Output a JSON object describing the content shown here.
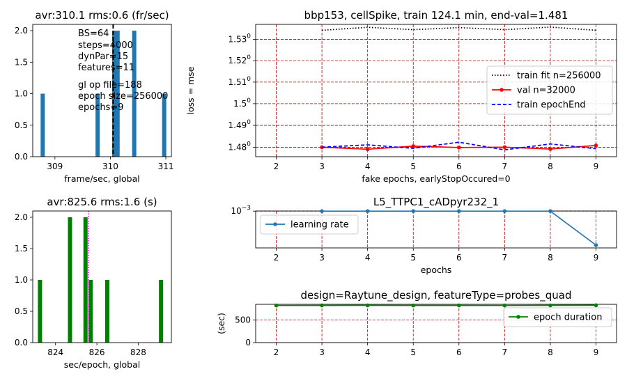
{
  "chart_data": [
    {
      "type": "bar",
      "title": "avr:310.1 rms:0.6 (fr/sec)",
      "xlabel": "frame/sec,  global",
      "ylabel": "",
      "xlim": [
        308.6,
        311.1
      ],
      "ylim": [
        0,
        2.1
      ],
      "xticks": [
        309,
        310,
        311
      ],
      "xtick_labels": [
        "309",
        "310",
        "311"
      ],
      "yticks": [
        0.0,
        0.5,
        1.0,
        1.5,
        2.0
      ],
      "ytick_labels": [
        "0.0",
        "0.5",
        "1.0",
        "1.5",
        "2.0"
      ],
      "bars": [
        {
          "x": 308.78,
          "value": 1
        },
        {
          "x": 309.77,
          "value": 1
        },
        {
          "x": 310.07,
          "value": 2
        },
        {
          "x": 310.13,
          "value": 2
        },
        {
          "x": 310.43,
          "value": 2
        },
        {
          "x": 310.97,
          "value": 1
        }
      ],
      "bar_color": "#1f77b4",
      "mean_line": {
        "x": 310.05,
        "color": "#000000",
        "style": "dashed"
      },
      "annotations": [
        "BS=64",
        "steps=4000",
        "dynPar=15",
        "features=11",
        "gl op file=188",
        "epoch size=256000",
        "epochs=9"
      ]
    },
    {
      "type": "line",
      "title": "bbp153, cellSpike, train 124.1 min, end-val=1.481",
      "xlabel": "fake epochs, earlyStopOccured=0",
      "ylabel": "loss = mse",
      "xlim": [
        1.55,
        9.45
      ],
      "ylim": [
        1.4757,
        1.5371
      ],
      "log_y": true,
      "xticks": [
        2,
        3,
        4,
        5,
        6,
        7,
        8,
        9
      ],
      "xtick_labels": [
        "2",
        "3",
        "4",
        "5",
        "6",
        "7",
        "8",
        "9"
      ],
      "yticks": [
        1.48,
        1.49,
        1.5,
        1.51,
        1.52,
        1.53
      ],
      "ytick_labels": [
        "1.48",
        "1.49",
        "1.5",
        "1.51",
        "1.52",
        "1.53"
      ],
      "ytick_exponent": "0",
      "grid": true,
      "legend_position": "center-right",
      "series": [
        {
          "name": "train fit n=256000",
          "color": "#000000",
          "style": "dotted",
          "marker": "none",
          "x": [
            3,
            4,
            5,
            6,
            7,
            8,
            9
          ],
          "y": [
            1.5343,
            1.5357,
            1.5346,
            1.5356,
            1.5346,
            1.5358,
            1.5343
          ]
        },
        {
          "name": "val n=32000",
          "color": "#ff0000",
          "style": "solid",
          "marker": "dot",
          "x": [
            3,
            4,
            5,
            6,
            7,
            8,
            9
          ],
          "y": [
            1.48,
            1.4791,
            1.4805,
            1.4799,
            1.48,
            1.4792,
            1.4808
          ]
        },
        {
          "name": "train epochEnd",
          "color": "#0000ff",
          "style": "dashed",
          "marker": "none",
          "x": [
            3,
            4,
            5,
            6,
            7,
            8,
            9
          ],
          "y": [
            1.48,
            1.4811,
            1.4795,
            1.4823,
            1.4788,
            1.4815,
            1.4793
          ]
        }
      ]
    },
    {
      "type": "bar",
      "title": "avr:825.6 rms:1.6 (s)",
      "xlabel": "sec/epoch,  global",
      "ylabel": "",
      "xlim": [
        822.9,
        829.6
      ],
      "ylim": [
        0,
        2.1
      ],
      "xticks": [
        824,
        826,
        828
      ],
      "xtick_labels": [
        "824",
        "826",
        "828"
      ],
      "yticks": [
        0.0,
        0.5,
        1.0,
        1.5,
        2.0
      ],
      "ytick_labels": [
        "0.0",
        "0.5",
        "1.0",
        "1.5",
        "2.0"
      ],
      "bars": [
        {
          "x": 823.25,
          "value": 1
        },
        {
          "x": 824.7,
          "value": 2
        },
        {
          "x": 825.45,
          "value": 2
        },
        {
          "x": 825.7,
          "value": 1
        },
        {
          "x": 826.5,
          "value": 1
        },
        {
          "x": 829.1,
          "value": 1
        }
      ],
      "bar_color": "#008000",
      "mean_line": {
        "x": 825.6,
        "color": "#ff00ff",
        "style": "dotted"
      }
    },
    {
      "type": "line",
      "title": "L5_TTPC1_cADpyr232_1",
      "xlabel": "epochs",
      "ylabel": "",
      "xlim": [
        1.55,
        9.45
      ],
      "ylim": [
        0.0001,
        1.03
      ],
      "log_y": true,
      "xticks": [
        2,
        3,
        4,
        5,
        6,
        7,
        8,
        9
      ],
      "xtick_labels": [
        "2",
        "3",
        "4",
        "5",
        "6",
        "7",
        "8",
        "9"
      ],
      "yticks": [
        1
      ],
      "ytick_labels": [
        "10"
      ],
      "ytick_exponent": "−3",
      "grid": true,
      "legend_position": "upper-left",
      "series": [
        {
          "name": "learning rate",
          "color": "#1f77b4",
          "style": "solid",
          "marker": "dot",
          "x": [
            3,
            4,
            5,
            6,
            7,
            8,
            9
          ],
          "y": [
            1,
            1,
            1,
            1,
            1,
            1,
            0.0002
          ]
        }
      ]
    },
    {
      "type": "line",
      "title": "design=Raytune_design, featureType=probes_quad",
      "xlabel": "",
      "ylabel": "(sec)",
      "xlim": [
        1.55,
        9.45
      ],
      "ylim": [
        0,
        850
      ],
      "xticks": [
        2,
        3,
        4,
        5,
        6,
        7,
        8,
        9
      ],
      "xtick_labels": [
        "2",
        "3",
        "4",
        "5",
        "6",
        "7",
        "8",
        "9"
      ],
      "yticks": [
        0,
        500
      ],
      "ytick_labels": [
        "0",
        "500"
      ],
      "grid": true,
      "legend_position": "upper-right",
      "series": [
        {
          "name": "epoch duration",
          "color": "#008000",
          "style": "solid",
          "marker": "dot",
          "x": [
            2,
            3,
            4,
            5,
            6,
            7,
            8,
            9
          ],
          "y": [
            824,
            826,
            827,
            825,
            826,
            824,
            827,
            829
          ]
        }
      ]
    }
  ]
}
